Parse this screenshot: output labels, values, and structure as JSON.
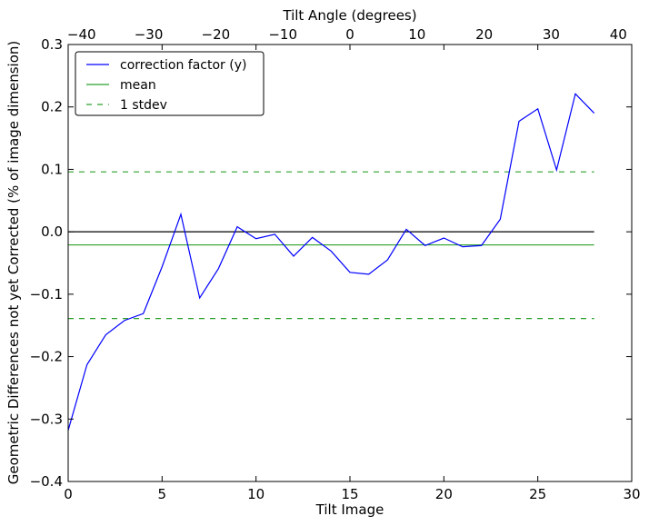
{
  "chart_data": {
    "type": "line",
    "title": "",
    "xlabel": "Tilt Image",
    "ylabel": "Geometric Differences not yet Corrected (% of image dimension)",
    "x2label": "Tilt Angle (degrees)",
    "xlim": [
      0,
      30
    ],
    "ylim": [
      -0.4,
      0.3
    ],
    "x2lim": [
      -42,
      42
    ],
    "xticks": [
      0,
      5,
      10,
      15,
      20,
      25,
      30
    ],
    "xtick_labels": [
      "0",
      "5",
      "10",
      "15",
      "20",
      "25",
      "30"
    ],
    "yticks": [
      -0.4,
      -0.3,
      -0.2,
      -0.1,
      0.0,
      0.1,
      0.2,
      0.3
    ],
    "ytick_labels": [
      "−0.4",
      "−0.3",
      "−0.2",
      "−0.1",
      "0.0",
      "0.1",
      "0.2",
      "0.3"
    ],
    "x2ticks": [
      -40,
      -30,
      -20,
      -10,
      0,
      10,
      20,
      30,
      40
    ],
    "x2tick_labels": [
      "−40",
      "−30",
      "−20",
      "−10",
      "0",
      "10",
      "20",
      "30",
      "40"
    ],
    "grid": false,
    "legend_position": "top-left",
    "series": [
      {
        "name": "correction factor (y)",
        "color": "#0000ff",
        "style": "solid",
        "x": [
          0,
          1,
          2,
          3,
          4,
          5,
          6,
          7,
          8,
          9,
          10,
          11,
          12,
          13,
          14,
          15,
          16,
          17,
          18,
          19,
          20,
          21,
          22,
          23,
          24,
          25,
          26,
          27,
          28
        ],
        "values": [
          -0.318,
          -0.213,
          -0.165,
          -0.142,
          -0.131,
          -0.056,
          0.028,
          -0.106,
          -0.059,
          0.008,
          -0.011,
          -0.004,
          -0.039,
          -0.009,
          -0.031,
          -0.065,
          -0.068,
          -0.045,
          0.004,
          -0.022,
          -0.01,
          -0.024,
          -0.022,
          0.02,
          0.177,
          0.197,
          0.099,
          0.221,
          0.19
        ]
      },
      {
        "name": "mean",
        "color": "#2ca02c",
        "style": "solid",
        "x": [
          0,
          28
        ],
        "values": [
          -0.021,
          -0.021
        ]
      },
      {
        "name": "1 stdev",
        "color": "#2ca02c",
        "style": "dashed",
        "x": [
          0,
          28
        ],
        "values": [
          0.096,
          0.096
        ]
      },
      {
        "name": "",
        "color": "#2ca02c",
        "style": "dashed",
        "x": [
          0,
          28
        ],
        "values": [
          -0.139,
          -0.139
        ]
      },
      {
        "name": "",
        "color": "#000000",
        "style": "solid",
        "x": [
          0,
          28
        ],
        "values": [
          0.0,
          0.0
        ]
      }
    ]
  }
}
